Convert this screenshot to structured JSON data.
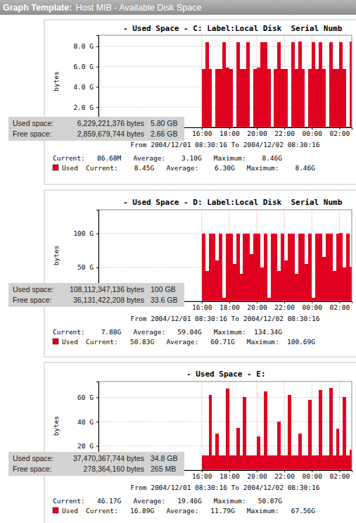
{
  "header": {
    "label": "Graph Template:",
    "title": "Host MIB - Available Disk Space"
  },
  "chart_data": [
    {
      "type": "bar",
      "title": "- Used Space - C: Label:Local Disk  Serial Numb",
      "y_label": "bytes",
      "x": [
        16,
        16.25,
        16.5,
        16.75,
        17,
        17.25,
        17.5,
        17.75,
        18,
        18.25,
        18.5,
        18.75,
        19,
        19.25,
        19.5,
        19.75,
        20,
        20.25,
        20.5,
        20.75,
        21,
        21.25,
        21.5,
        21.75,
        22,
        22.25,
        22.5,
        22.75,
        23,
        23.25,
        23.5,
        23.75,
        24,
        24.25,
        24.5,
        24.75,
        25,
        25.25,
        25.5,
        25.75,
        26,
        26.25,
        26.5,
        26.75
      ],
      "series": [
        {
          "name": "Used",
          "color": "#e00020",
          "values": [
            5.8,
            8.4,
            5.8,
            0.1,
            5.8,
            5.8,
            8.4,
            5.9,
            5.8,
            0.1,
            8.4,
            5.8,
            5.8,
            8.4,
            0.1,
            5.8,
            5.9,
            8.4,
            8.4,
            5.8,
            0.1,
            5.8,
            8.4,
            5.8,
            5.8,
            0.1,
            8.4,
            5.8,
            8.46,
            5.8,
            0.1,
            5.8,
            8.4,
            5.8,
            8.4,
            5.8,
            0.1,
            8.4,
            5.8,
            5.8,
            8.4,
            5.8,
            0.1,
            8.45
          ],
          "stats": "Current:    8.45G   Average:    6.30G   Maximum:    8.46G"
        }
      ],
      "summary": "Current:   86.68M   Average:    3.10G   Maximum:    8.46G",
      "period": "From 2004/12/01 08:30:16 To 2004/12/02 08:30:16",
      "xlim": [
        8.5,
        26.9
      ],
      "xticks": [
        {
          "value": 16,
          "label": "16:00"
        },
        {
          "value": 18,
          "label": "18:00"
        },
        {
          "value": 20,
          "label": "20:00"
        },
        {
          "value": 22,
          "label": "22:00"
        },
        {
          "value": 24,
          "label": "00:00"
        },
        {
          "value": 26,
          "label": "02:00"
        }
      ],
      "ylim": [
        0,
        9.1
      ],
      "yticks": [
        {
          "value": 2,
          "label": "2.0 G"
        },
        {
          "value": 4,
          "label": "4.0 G"
        },
        {
          "value": 6,
          "label": "6.0 G"
        },
        {
          "value": 8,
          "label": "8.0 G"
        }
      ],
      "grid": true,
      "tooltip": {
        "rows": [
          [
            "Used space:",
            "6,229,221,376 bytes",
            "5.80 GB"
          ],
          [
            "Free space:",
            "2,859,679,744 bytes",
            "2.66 GB"
          ]
        ]
      }
    },
    {
      "type": "bar",
      "title": "- Used Space - D: Label:Local Disk  Serial Numb",
      "y_label": "bytes",
      "x": [
        16,
        16.25,
        16.5,
        16.75,
        17,
        17.25,
        17.5,
        17.75,
        18,
        18.25,
        18.5,
        18.75,
        19,
        19.25,
        19.5,
        19.75,
        20,
        20.25,
        20.5,
        20.75,
        21,
        21.25,
        21.5,
        21.75,
        22,
        22.25,
        22.5,
        22.75,
        23,
        23.25,
        23.5,
        23.75,
        24,
        24.25,
        24.5,
        24.75,
        25,
        25.25,
        25.5,
        25.75,
        26,
        26.25,
        26.5,
        26.75
      ],
      "series": [
        {
          "name": "Used",
          "color": "#e00020",
          "values": [
            100,
            45,
            100,
            100,
            60,
            100,
            5,
            100,
            100,
            55,
            100,
            40,
            100,
            100,
            70,
            100,
            100,
            50,
            100,
            5,
            100,
            100,
            45,
            100,
            60,
            100,
            100,
            40,
            100,
            100,
            55,
            100,
            5,
            100,
            100,
            65,
            100,
            100,
            45,
            100,
            100.69,
            50,
            100,
            50.83
          ],
          "stats": "Current:   50.83G   Average:   60.71G   Maximum:  100.69G"
        }
      ],
      "summary": "Current:    7.88G   Average:   59.04G   Maximum:  134.34G",
      "period": "From 2004/12/01 08:30:16 To 2004/12/02 08:30:16",
      "xlim": [
        8.5,
        26.9
      ],
      "xticks": [
        {
          "value": 16,
          "label": "16:00"
        },
        {
          "value": 18,
          "label": "18:00"
        },
        {
          "value": 20,
          "label": "20:00"
        },
        {
          "value": 22,
          "label": "22:00"
        },
        {
          "value": 24,
          "label": "00:00"
        },
        {
          "value": 26,
          "label": "02:00"
        }
      ],
      "ylim": [
        0,
        135
      ],
      "yticks": [
        {
          "value": 50,
          "label": "50 G"
        },
        {
          "value": 100,
          "label": "100 G"
        }
      ],
      "grid": true,
      "tooltip": {
        "rows": [
          [
            "Used space:",
            "108,112,347,136 bytes",
            "100 GB"
          ],
          [
            "Free space:",
            "36,131,422,208 bytes",
            "33.6 GB"
          ]
        ]
      }
    },
    {
      "type": "bar",
      "title": "- Used Space - E:",
      "y_label": "bytes",
      "x": [
        16,
        16.25,
        16.5,
        16.75,
        17,
        17.25,
        17.5,
        17.75,
        18,
        18.25,
        18.5,
        18.75,
        19,
        19.25,
        19.5,
        19.75,
        20,
        20.25,
        20.5,
        20.75,
        21,
        21.25,
        21.5,
        21.75,
        22,
        22.25,
        22.5,
        22.75,
        23,
        23.25,
        23.5,
        23.75,
        24,
        24.25,
        24.5,
        24.75,
        25,
        25.25,
        25.5,
        25.75,
        26,
        26.25,
        26.5,
        26.75
      ],
      "series": [
        {
          "name": "Used",
          "color": "#e00020",
          "values": [
            12,
            12,
            62,
            12,
            30,
            12,
            12,
            67,
            12,
            12,
            35,
            12,
            60,
            12,
            12,
            12,
            28,
            12,
            65,
            12,
            12,
            12,
            40,
            12,
            12,
            62,
            12,
            12,
            30,
            12,
            12,
            58,
            12,
            12,
            66,
            12,
            12,
            67.56,
            12,
            34,
            12,
            60,
            12,
            16.89
          ],
          "stats": "Current:   16.89G   Average:   11.79G   Maximum:   67.56G"
        }
      ],
      "summary": "Current:   46.17G   Average:   19.46G   Maximum:   50.87G",
      "period": "From 2004/12/01 08:30:16 To 2004/12/02 08:30:16",
      "xlim": [
        8.5,
        26.9
      ],
      "xticks": [
        {
          "value": 16,
          "label": "16:00"
        },
        {
          "value": 18,
          "label": "18:00"
        },
        {
          "value": 20,
          "label": "20:00"
        },
        {
          "value": 22,
          "label": "22:00"
        },
        {
          "value": 24,
          "label": "00:00"
        },
        {
          "value": 26,
          "label": "02:00"
        }
      ],
      "ylim": [
        0,
        73
      ],
      "yticks": [
        {
          "value": 20,
          "label": "20 G"
        },
        {
          "value": 40,
          "label": "40 G"
        },
        {
          "value": 60,
          "label": "60 G"
        }
      ],
      "grid": true,
      "tooltip": {
        "rows": [
          [
            "Used space:",
            "37,470,367,744 bytes",
            "34.8 GB"
          ],
          [
            "Free space:",
            "278,364,160 bytes",
            "265 MB"
          ]
        ]
      }
    }
  ]
}
